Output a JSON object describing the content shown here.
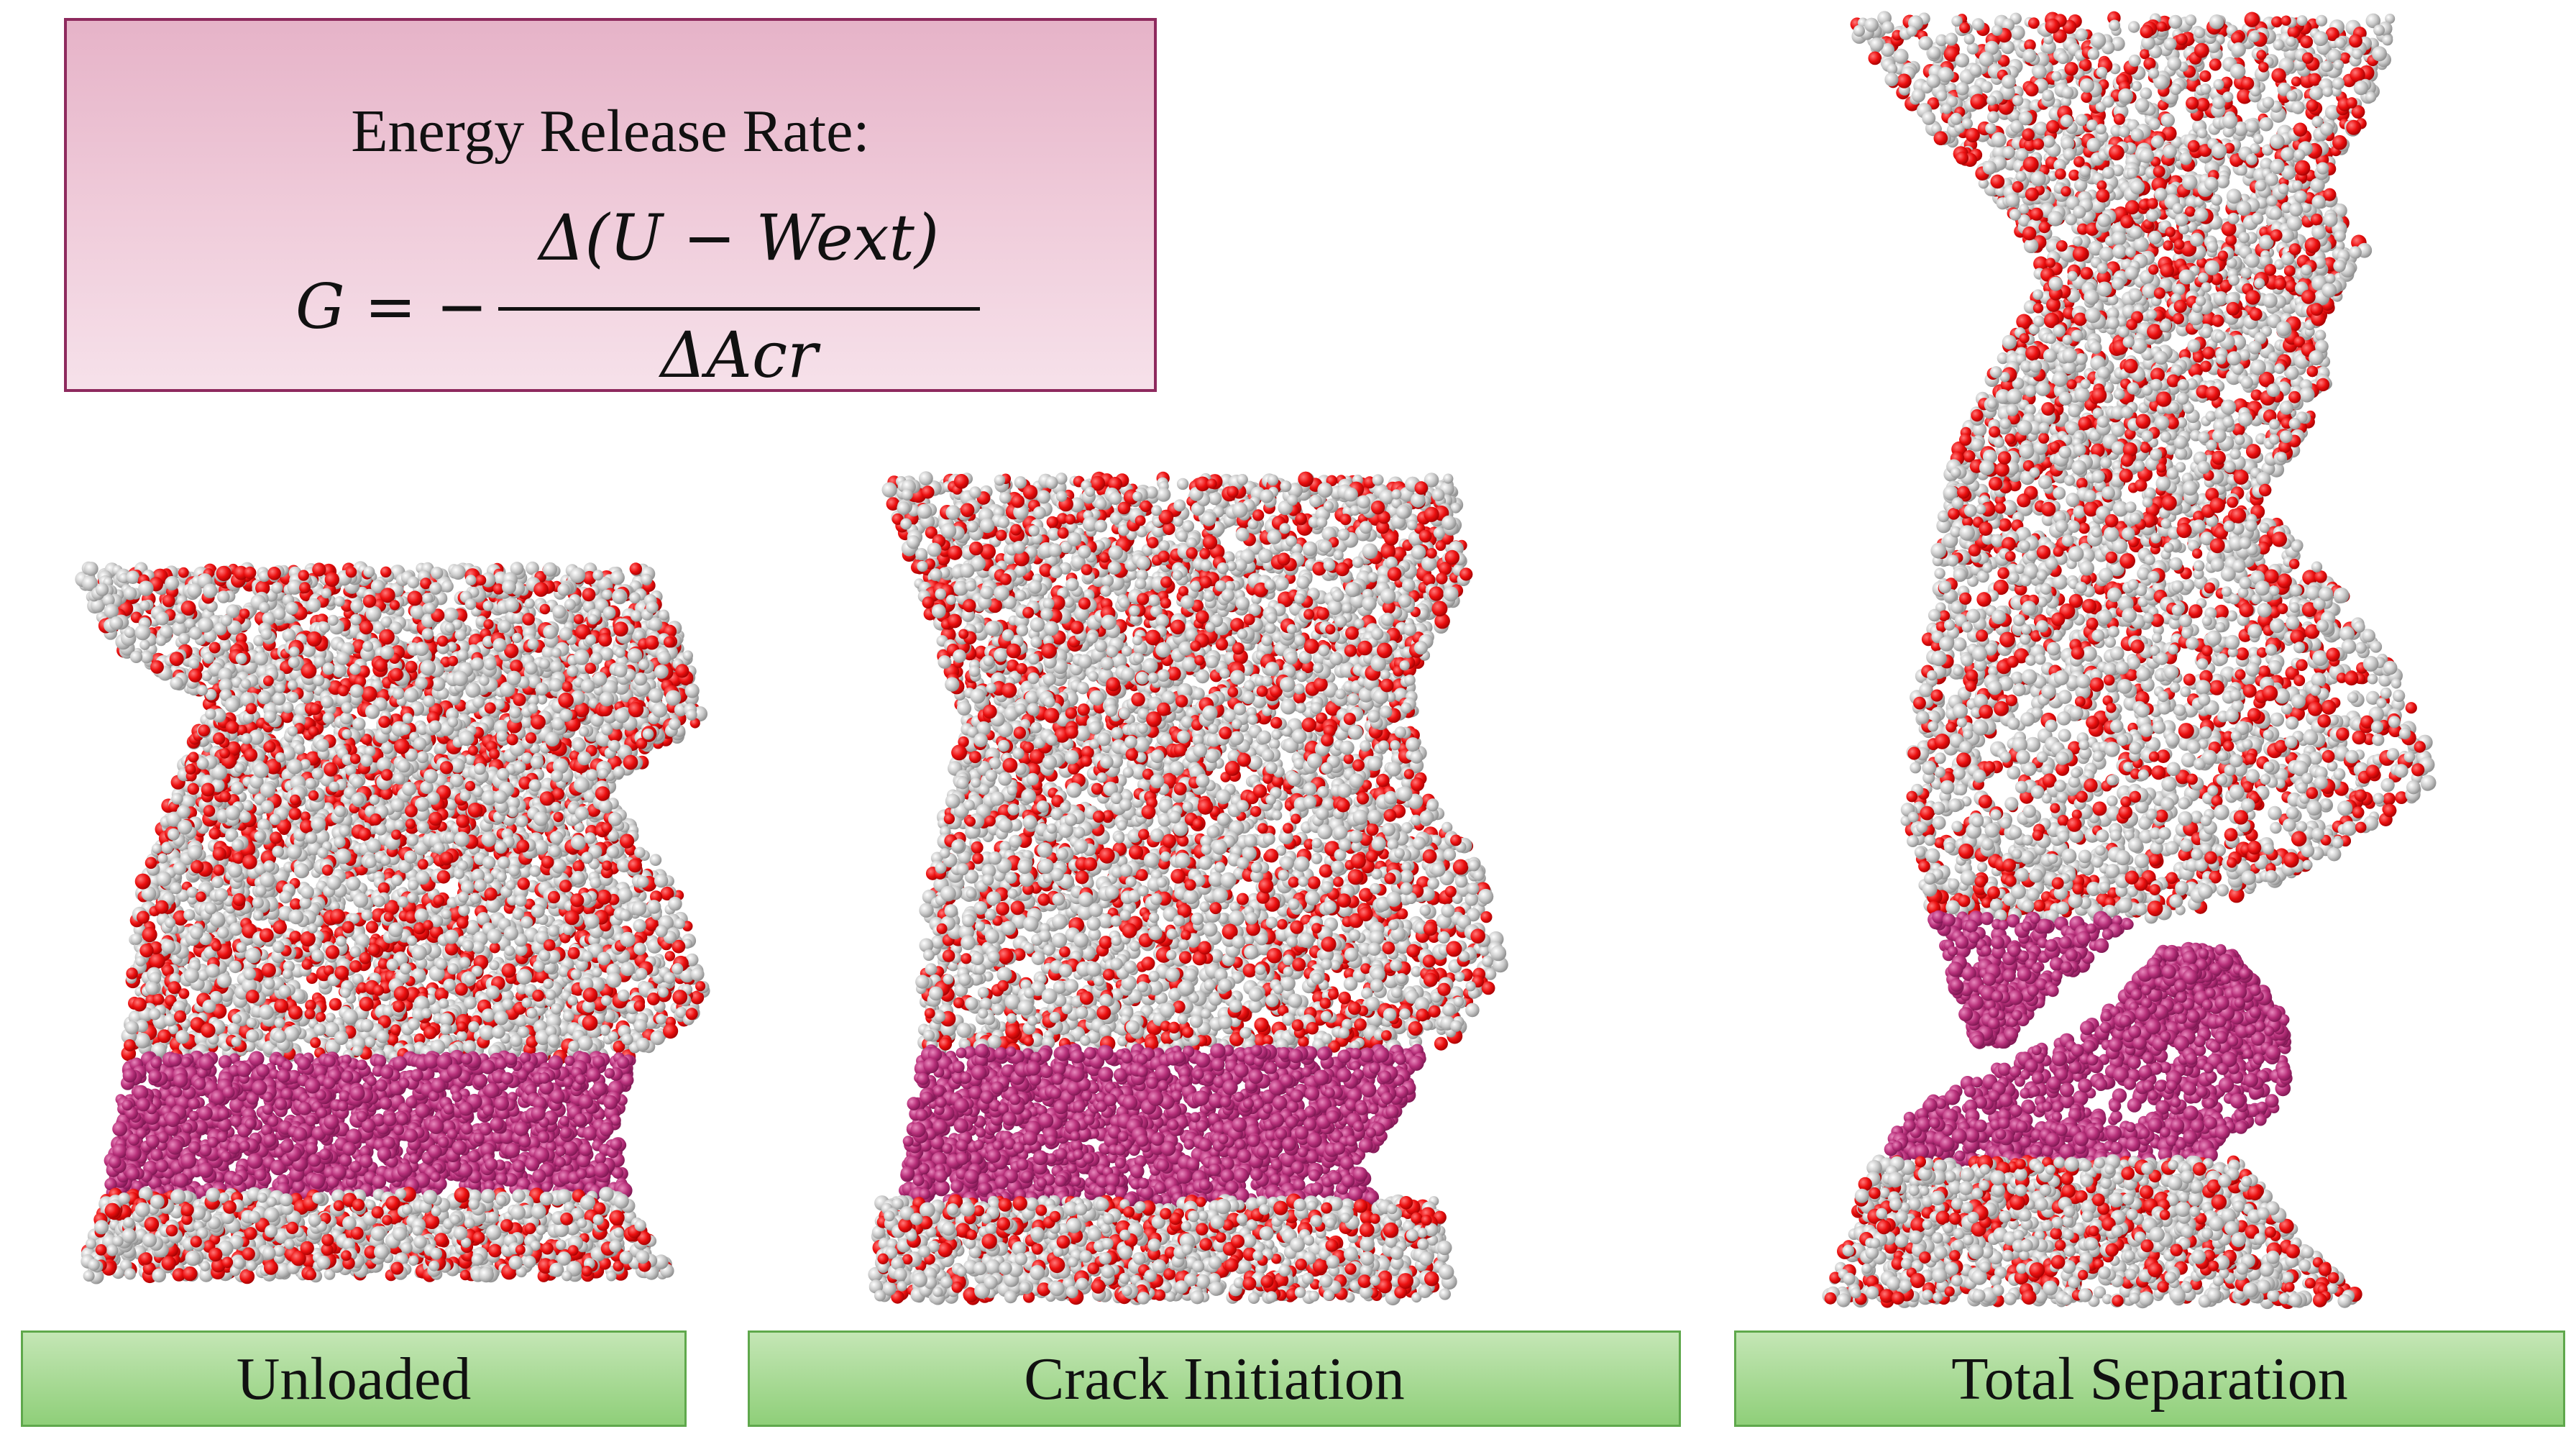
{
  "formula": {
    "title": "Energy Release Rate:",
    "lhs": "G = −",
    "numerator": "Δ(U − Wext)",
    "denominator": "ΔAcr"
  },
  "panels": [
    {
      "label": "Unloaded"
    },
    {
      "label": "Crack Initiation"
    },
    {
      "label": "Total Separation"
    }
  ],
  "colors": {
    "atom_gray": "#c8c8c8",
    "atom_red": "#e81010",
    "atom_magenta": "#b8307a",
    "formula_border": "#8e2a5e",
    "label_green": "#8fcf79"
  }
}
